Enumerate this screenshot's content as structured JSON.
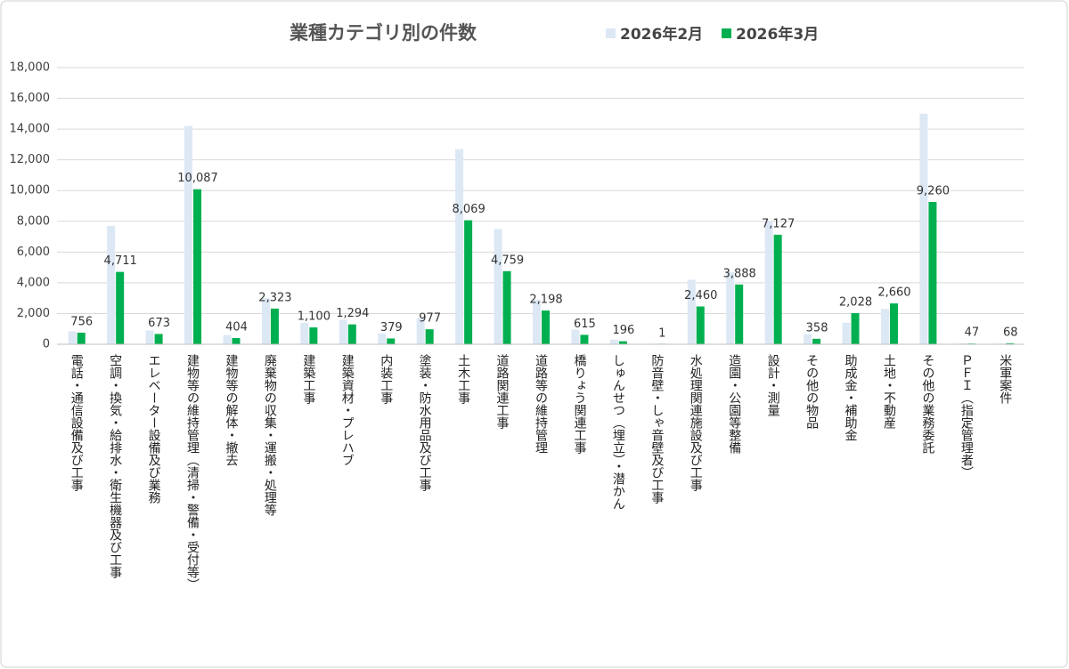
{
  "chart_data": {
    "type": "bar",
    "title": "業種カテゴリ別の件数",
    "categories": [
      "電話・通信設備及び工事",
      "空調・換気・給排水・衛生機器及び工事",
      "エレベーター設備及び業務",
      "建物等の維持管理（清掃・警備・受付等）",
      "建物等の解体・撤去",
      "廃棄物の収集・運搬・処理等",
      "建築工事",
      "建築資材・プレハブ",
      "内装工事",
      "塗装・防水用品及び工事",
      "土木工事",
      "道路関連工事",
      "道路等の維持管理",
      "橋りょう関連工事",
      "しゅんせつ（埋立）・潜かん",
      "防音壁・しゃ音壁及び工事",
      "水処理関連施設及び工事",
      "造園・公園等整備",
      "設計・測量",
      "その他の物品",
      "助成金・補助金",
      "土地・不動産",
      "その他の業務委託",
      "ＰＦＩ（指定管理者）",
      "米軍案件"
    ],
    "series": [
      {
        "name": "2026年2月",
        "color": "#dde8f5",
        "values": [
          850,
          7700,
          900,
          14200,
          600,
          3000,
          1400,
          1600,
          700,
          1700,
          12700,
          7500,
          2900,
          950,
          300,
          5,
          4200,
          4700,
          8000,
          650,
          1400,
          2300,
          15000,
          60,
          50
        ]
      },
      {
        "name": "2026年3月",
        "color": "#00b050",
        "values": [
          756,
          4711,
          673,
          10087,
          404,
          2323,
          1100,
          1294,
          379,
          977,
          8069,
          4759,
          2198,
          615,
          196,
          1,
          2460,
          3888,
          7127,
          358,
          2028,
          2660,
          9260,
          47,
          68
        ],
        "value_labels": [
          "756",
          "4,711",
          "673",
          "10,087",
          "404",
          "2,323",
          "1,100",
          "1,294",
          "379",
          "977",
          "8,069",
          "4,759",
          "2,198",
          "615",
          "196",
          "1",
          "2,460",
          "3,888",
          "7,127",
          "358",
          "2,028",
          "2,660",
          "9,260",
          "47",
          "68"
        ]
      }
    ],
    "ylim": [
      0,
      18000
    ],
    "yticks": [
      0,
      {
        "value": 2000,
        "label": "2,000"
      },
      {
        "value": 4000,
        "label": "4,000"
      },
      {
        "value": 6000,
        "label": "6,000"
      },
      {
        "value": 8000,
        "label": "8,000"
      },
      {
        "value": 10000,
        "label": "10,000"
      },
      {
        "value": 12000,
        "label": "12,000"
      },
      {
        "value": 14000,
        "label": "14,000"
      },
      {
        "value": 16000,
        "label": "16,000"
      },
      {
        "value": 18000,
        "label": "18,000"
      }
    ],
    "grid": true,
    "legend": "top-right"
  }
}
